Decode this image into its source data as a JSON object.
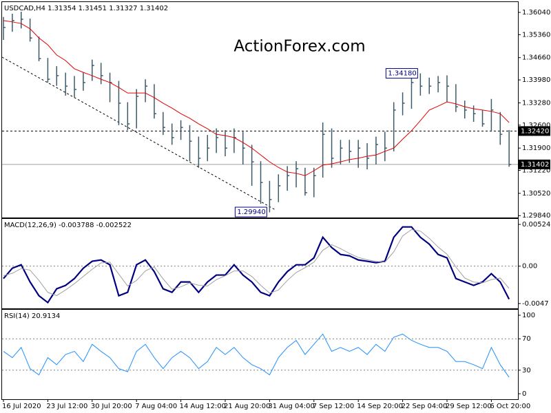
{
  "watermark": "ActionForex.com",
  "chart_data": [
    {
      "type": "ohlc",
      "title": "USDCAD,H4  1.31354 1.31451 1.31327 1.31402",
      "color": "#3d5a6a",
      "categories": [
        "16 Jul 2020",
        null,
        null,
        null,
        null,
        "23 Jul 12:00",
        null,
        null,
        null,
        null,
        "30 Jul 20:00",
        null,
        null,
        null,
        null,
        "7 Aug 04:00",
        null,
        null,
        null,
        null,
        "14 Aug 12:00",
        null,
        null,
        null,
        null,
        "21 Aug 20:00",
        null,
        null,
        null,
        null,
        "31 Aug 04:00",
        null,
        null,
        null,
        null,
        "7 Sep 12:00",
        null,
        null,
        null,
        null,
        "14 Sep 20:00",
        null,
        null,
        null,
        null,
        "22 Sep 04:00",
        null,
        null,
        null,
        null,
        "29 Sep 12:00",
        null,
        null,
        null,
        null,
        "6 Oct 20:00",
        null,
        null
      ],
      "high": [
        1.359,
        1.36,
        1.3606,
        1.3585,
        1.353,
        1.3465,
        1.344,
        1.342,
        1.341,
        1.342,
        1.346,
        1.345,
        1.342,
        1.3395,
        1.333,
        1.337,
        1.34,
        1.3385,
        1.33,
        1.3265,
        1.3275,
        1.326,
        1.3225,
        1.323,
        1.325,
        1.3245,
        1.325,
        1.324,
        1.32,
        1.315,
        1.309,
        1.311,
        1.3135,
        1.315,
        1.313,
        1.313,
        1.3268,
        1.325,
        1.3215,
        1.3215,
        1.3215,
        1.3205,
        1.3225,
        1.324,
        1.333,
        1.336,
        1.341,
        1.3418,
        1.3405,
        1.341,
        1.3412,
        1.3385,
        1.3335,
        1.332,
        1.3305,
        1.334,
        1.33,
        1.3245
      ],
      "low": [
        1.352,
        1.3545,
        1.3555,
        1.3515,
        1.3455,
        1.339,
        1.338,
        1.335,
        1.3345,
        1.3365,
        1.3395,
        1.3385,
        1.333,
        1.326,
        1.3245,
        1.325,
        1.333,
        1.328,
        1.323,
        1.32,
        1.3215,
        1.315,
        1.313,
        1.315,
        1.3175,
        1.3165,
        1.3175,
        1.314,
        1.3075,
        1.302,
        1.2994,
        1.3025,
        1.306,
        1.307,
        1.3045,
        1.304,
        1.31,
        1.313,
        1.314,
        1.3145,
        1.313,
        1.3125,
        1.314,
        1.315,
        1.318,
        1.329,
        1.331,
        1.335,
        1.3355,
        1.336,
        1.333,
        1.33,
        1.328,
        1.327,
        1.3255,
        1.324,
        1.32,
        1.3133
      ],
      "close": [
        1.3558,
        1.3579,
        1.3583,
        1.3526,
        1.3463,
        1.34,
        1.3411,
        1.3379,
        1.3369,
        1.339,
        1.3442,
        1.3411,
        1.339,
        1.3327,
        1.3264,
        1.3348,
        1.3379,
        1.3295,
        1.3253,
        1.3222,
        1.3253,
        1.3211,
        1.3159,
        1.319,
        1.3222,
        1.319,
        1.3222,
        1.319,
        1.3148,
        1.3085,
        1.3033,
        1.3075,
        1.3106,
        1.3127,
        1.3054,
        1.3106,
        1.3232,
        1.3159,
        1.319,
        1.318,
        1.319,
        1.3159,
        1.3201,
        1.319,
        1.3306,
        1.3327,
        1.339,
        1.3379,
        1.3379,
        1.339,
        1.3379,
        1.3316,
        1.3306,
        1.3295,
        1.3264,
        1.3306,
        1.3232,
        1.314
      ],
      "ma_color": "#e00000",
      "ma_values": [
        1.3579,
        1.3575,
        1.357,
        1.3554,
        1.3526,
        1.3505,
        1.3474,
        1.3457,
        1.3432,
        1.3421,
        1.3411,
        1.34,
        1.339,
        1.3375,
        1.3358,
        1.3358,
        1.3358,
        1.3344,
        1.3327,
        1.3312,
        1.3295,
        1.3281,
        1.3264,
        1.3249,
        1.3232,
        1.3228,
        1.3222,
        1.3207,
        1.319,
        1.3169,
        1.3148,
        1.3131,
        1.3117,
        1.3113,
        1.3106,
        1.3121,
        1.3138,
        1.3142,
        1.3148,
        1.3155,
        1.3159,
        1.3165,
        1.3169,
        1.318,
        1.319,
        1.3217,
        1.3243,
        1.3274,
        1.3306,
        1.3318,
        1.3331,
        1.3325,
        1.3316,
        1.331,
        1.3306,
        1.3302,
        1.3295,
        1.3268
      ],
      "ylim": [
        1.29782,
        1.36355
      ],
      "yticks": [
        {
          "value": 1.3604,
          "label": "1.36040"
        },
        {
          "value": 1.3536,
          "label": "1.35360"
        },
        {
          "value": 1.3466,
          "label": "1.34660"
        },
        {
          "value": 1.3398,
          "label": "1.33980"
        },
        {
          "value": 1.3328,
          "label": "1.33280"
        },
        {
          "value": 1.326,
          "label": "1.32600"
        },
        {
          "value": 1.319,
          "label": "1.31900"
        },
        {
          "value": 1.3122,
          "label": "1.31220"
        },
        {
          "value": 1.3052,
          "label": "1.30520"
        },
        {
          "value": 1.2984,
          "label": "1.29840"
        }
      ],
      "levels": [
        {
          "value": 1.3242,
          "label": "1.32420",
          "style": "dashed",
          "color": "#000000"
        },
        {
          "value": 1.31402,
          "label": "1.31402",
          "style": "solid",
          "color": "#a0a0a0"
        }
      ],
      "annotations": [
        {
          "value": 1.3418,
          "label": "1.34180"
        },
        {
          "value": 1.2994,
          "label": "1.29940"
        }
      ]
    },
    {
      "type": "line",
      "title": "MACD(12,26,9) -0.003788 -0.002522",
      "series": [
        {
          "color": "#000080",
          "width": 2.2,
          "values": [
            -0.00156,
            -0.00026,
            0.00017,
            -0.00199,
            -0.00372,
            -0.00458,
            -0.00285,
            -0.00242,
            -0.00156,
            -0.00026,
            0.00061,
            0.00078,
            0.00017,
            -0.00372,
            -0.00329,
            0.00017,
            0.00078,
            -0.00069,
            -0.00285,
            -0.00329,
            -0.00199,
            -0.00199,
            -0.00329,
            -0.00199,
            -0.00112,
            -0.00112,
            0.00017,
            -0.00112,
            -0.00199,
            -0.00329,
            -0.00372,
            -0.00199,
            -0.00069,
            0.00017,
            0.00017,
            0.00104,
            0.00363,
            0.00234,
            0.00147,
            0.0013,
            0.00078,
            0.00061,
            0.00043,
            0.00061,
            0.00363,
            0.00493,
            0.00493,
            0.00363,
            0.00277,
            0.00147,
            0.00104,
            -0.00156,
            -0.00199,
            -0.00242,
            -0.00199,
            -0.00095,
            -0.00199,
            -0.00415
          ]
        },
        {
          "color": "#a0a0a0",
          "width": 1,
          "values": [
            -0.0012,
            -0.0009,
            -0.0003,
            -0.0005,
            -0.0018,
            -0.0033,
            -0.0037,
            -0.003,
            -0.0022,
            -0.0013,
            -0.0004,
            0.0004,
            0.0005,
            -0.001,
            -0.0025,
            -0.0018,
            -0.0006,
            -0.0001,
            -0.0016,
            -0.0029,
            -0.0026,
            -0.0021,
            -0.0024,
            -0.0025,
            -0.0017,
            -0.0012,
            -0.0006,
            -0.0006,
            -0.0013,
            -0.0024,
            -0.0034,
            -0.003,
            -0.0018,
            -0.0008,
            -0.0002,
            0.0005,
            0.002,
            0.0027,
            0.0022,
            0.0016,
            0.0011,
            0.0008,
            0.0006,
            0.0005,
            0.0018,
            0.0038,
            0.0046,
            0.0044,
            0.0035,
            0.0024,
            0.0015,
            -0.0001,
            -0.0015,
            -0.002,
            -0.0021,
            -0.0017,
            -0.0015,
            -0.0028
          ]
        }
      ],
      "ylim": [
        -0.00531,
        0.00594
      ],
      "yticks": [
        0.005245,
        {
          "value": 0,
          "label": "0.00"
        },
        -0.0047
      ],
      "levels": [
        0
      ]
    },
    {
      "type": "line",
      "title": "RSI(14) 20.9134",
      "series": [
        {
          "color": "#1e90ff",
          "width": 1,
          "values": [
            54,
            46,
            59,
            32,
            24,
            46,
            37,
            50,
            54,
            41,
            63,
            54,
            46,
            32,
            28,
            54,
            63,
            46,
            32,
            46,
            54,
            46,
            32,
            41,
            59,
            50,
            59,
            46,
            37,
            32,
            24,
            46,
            59,
            68,
            50,
            63,
            76,
            54,
            59,
            54,
            59,
            50,
            63,
            54,
            72,
            76,
            68,
            63,
            59,
            59,
            54,
            41,
            41,
            37,
            32,
            59,
            37,
            21
          ]
        }
      ],
      "ylim": [
        -7,
        107
      ],
      "yticks": [
        100,
        70,
        30,
        0
      ],
      "levels": [
        70,
        30
      ]
    }
  ]
}
